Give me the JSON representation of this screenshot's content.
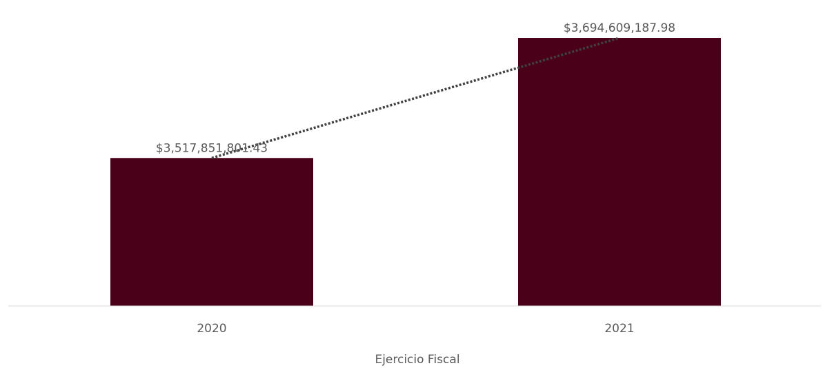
{
  "chart_data": {
    "type": "bar",
    "title": "",
    "xlabel": "Ejercicio Fiscal",
    "ylabel": "",
    "categories": [
      "2020",
      "2021"
    ],
    "values": [
      3517851801.43,
      3694609187.98
    ],
    "data_labels": [
      "$3,517,851,801.43",
      "$3,694,609,187.98"
    ],
    "ylim": [
      3300000000,
      3720000000
    ],
    "trendline": "linear",
    "trendline_style": "dotted",
    "grid": false,
    "legend": "none",
    "colors": {
      "bar": "#4a0019",
      "trendline": "#404040",
      "axis_line": "#d9d9d9",
      "text": "#595959"
    }
  }
}
